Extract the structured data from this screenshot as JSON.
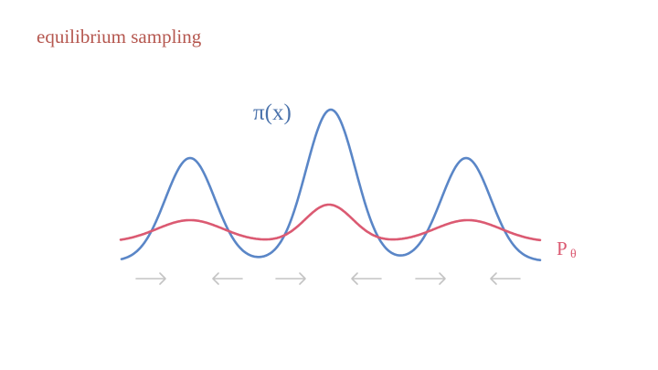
{
  "title": "equilibrium sampling",
  "target_label": "π(x)",
  "model_label": "P",
  "model_label_subscript": "θ",
  "colors": {
    "title": "#b5574f",
    "target_curve": "#5a86c7",
    "model_curve": "#db5a72",
    "arrows": "#c4c4c4"
  },
  "arrows": [
    "right",
    "left",
    "right",
    "left",
    "right",
    "left"
  ]
}
